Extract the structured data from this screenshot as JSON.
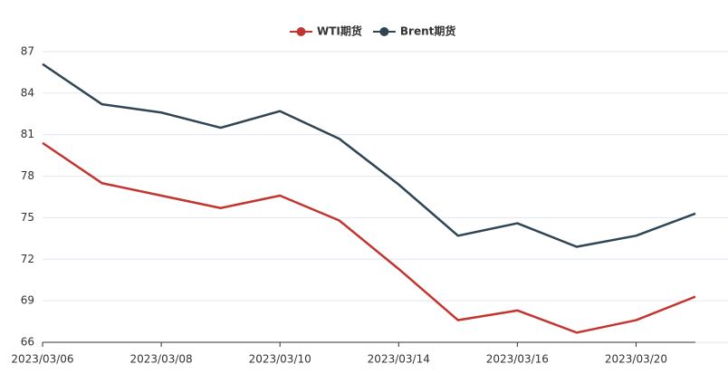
{
  "chart_data": {
    "type": "line",
    "categories": [
      "2023/03/06",
      null,
      "2023/03/08",
      null,
      "2023/03/10",
      null,
      "2023/03/14",
      null,
      "2023/03/16",
      null,
      "2023/03/20",
      null
    ],
    "series": [
      {
        "name": "WTI期货",
        "color": "#c23531",
        "values": [
          80.4,
          77.5,
          76.6,
          75.7,
          76.6,
          74.8,
          71.3,
          67.6,
          68.3,
          66.7,
          67.6,
          69.3
        ]
      },
      {
        "name": "Brent期货",
        "color": "#2f4554",
        "values": [
          86.1,
          83.2,
          82.6,
          81.5,
          82.7,
          80.7,
          77.4,
          73.7,
          74.6,
          72.9,
          73.7,
          75.3
        ]
      }
    ],
    "ylim": [
      66,
      87
    ],
    "yticks": [
      66,
      69,
      72,
      75,
      78,
      81,
      84,
      87
    ],
    "grid": true
  }
}
